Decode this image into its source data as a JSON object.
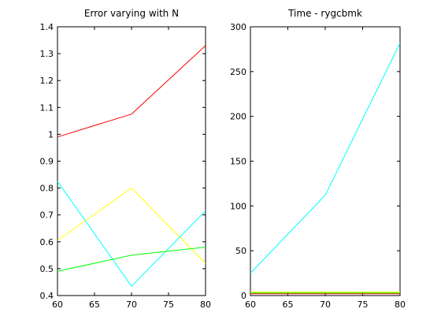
{
  "chart_data": [
    {
      "type": "line",
      "title": "Error varying with N",
      "xlabel": "",
      "ylabel": "",
      "xlim": [
        60,
        80
      ],
      "ylim": [
        0.4,
        1.4
      ],
      "xticks": [
        60,
        65,
        70,
        75,
        80
      ],
      "xtick_labels": [
        "60",
        "65",
        "70",
        "75",
        "80"
      ],
      "yticks": [
        0.4,
        0.5,
        0.6,
        0.7,
        0.8,
        0.9,
        1.0,
        1.1,
        1.2,
        1.3,
        1.4
      ],
      "ytick_labels": [
        "0.4",
        "0.5",
        "0.6",
        "0.7",
        "0.8",
        "0.9",
        "1",
        "1.1",
        "1.2",
        "1.3",
        "1.4"
      ],
      "grid": false,
      "legend": "none",
      "x": [
        60,
        70,
        80
      ],
      "series": [
        {
          "color": "#ff0000",
          "values": [
            0.99,
            1.075,
            1.33
          ]
        },
        {
          "color": "#ffff00",
          "values": [
            0.605,
            0.8,
            0.52
          ]
        },
        {
          "color": "#00ffff",
          "values": [
            0.825,
            0.435,
            0.715
          ]
        },
        {
          "color": "#00ff00",
          "values": [
            0.49,
            0.55,
            0.58
          ]
        }
      ]
    },
    {
      "type": "line",
      "title": "Time - rygcbmk",
      "xlabel": "",
      "ylabel": "",
      "xlim": [
        60,
        80
      ],
      "ylim": [
        0,
        300
      ],
      "xticks": [
        60,
        65,
        70,
        75,
        80
      ],
      "xtick_labels": [
        "60",
        "65",
        "70",
        "75",
        "80"
      ],
      "yticks": [
        0,
        50,
        100,
        150,
        200,
        250,
        300
      ],
      "ytick_labels": [
        "0",
        "50",
        "100",
        "150",
        "200",
        "250",
        "300"
      ],
      "grid": false,
      "legend": "none",
      "x": [
        60,
        70,
        80
      ],
      "series": [
        {
          "color": "#ff0000",
          "values": [
            2,
            2,
            2
          ]
        },
        {
          "color": "#ffff00",
          "values": [
            4,
            4,
            4
          ]
        },
        {
          "color": "#00ff00",
          "values": [
            3,
            3,
            3
          ]
        },
        {
          "color": "#00ffff",
          "values": [
            25,
            112,
            282
          ]
        }
      ]
    }
  ]
}
